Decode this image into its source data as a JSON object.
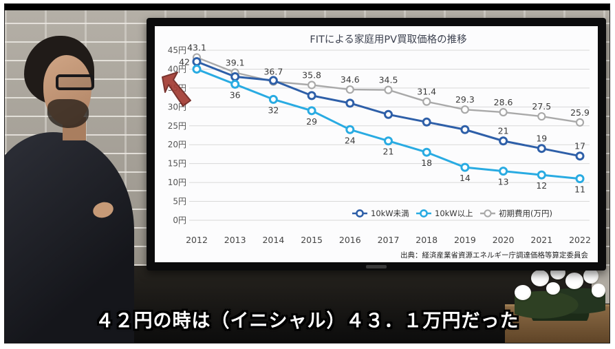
{
  "video": {
    "caption": "４２円の時は（イニシャル）４３．１万円だった"
  },
  "icons": {
    "red_arrow_color": "#a23b33"
  },
  "chart_data": {
    "type": "line",
    "title": "FITによる家庭用PV買取価格の推移",
    "source": "出典：経済産業省資源エネルギー庁調達価格等算定委員会",
    "x": [
      "2012",
      "2013",
      "2014",
      "2015",
      "2016",
      "2017",
      "2018",
      "2019",
      "2020",
      "2021",
      "2022"
    ],
    "ylim": [
      0,
      45
    ],
    "ytick_step": 5,
    "ytick_suffix": "円",
    "grid": true,
    "legend_position": "bottom-right-inside",
    "series": [
      {
        "name": "10kW未満",
        "color": "#2e5fa8",
        "values": [
          42,
          38,
          37,
          33,
          31,
          28,
          26,
          24,
          21,
          19,
          17
        ],
        "point_labels": [
          "42",
          "",
          "",
          "",
          "",
          "",
          "",
          "",
          "21",
          "19",
          "17"
        ],
        "label_position": "above",
        "label_overrides": {
          "0": "left"
        }
      },
      {
        "name": "10kW以上",
        "color": "#29abe2",
        "values": [
          40,
          36,
          32,
          29,
          24,
          21,
          18,
          14,
          13,
          12,
          11
        ],
        "point_labels": [
          "",
          "36",
          "32",
          "29",
          "24",
          "21",
          "18",
          "14",
          "13",
          "12",
          "11"
        ],
        "label_position": "below"
      },
      {
        "name": "初期費用(万円)",
        "color": "#a9a9a9",
        "values": [
          43.1,
          39.1,
          36.7,
          35.8,
          34.6,
          34.5,
          31.4,
          29.3,
          28.6,
          27.5,
          25.9
        ],
        "point_labels": [
          "43.1",
          "39.1",
          "36.7",
          "35.8",
          "34.6",
          "34.5",
          "31.4",
          "29.3",
          "28.6",
          "27.5",
          "25.9"
        ],
        "label_position": "above"
      }
    ]
  }
}
